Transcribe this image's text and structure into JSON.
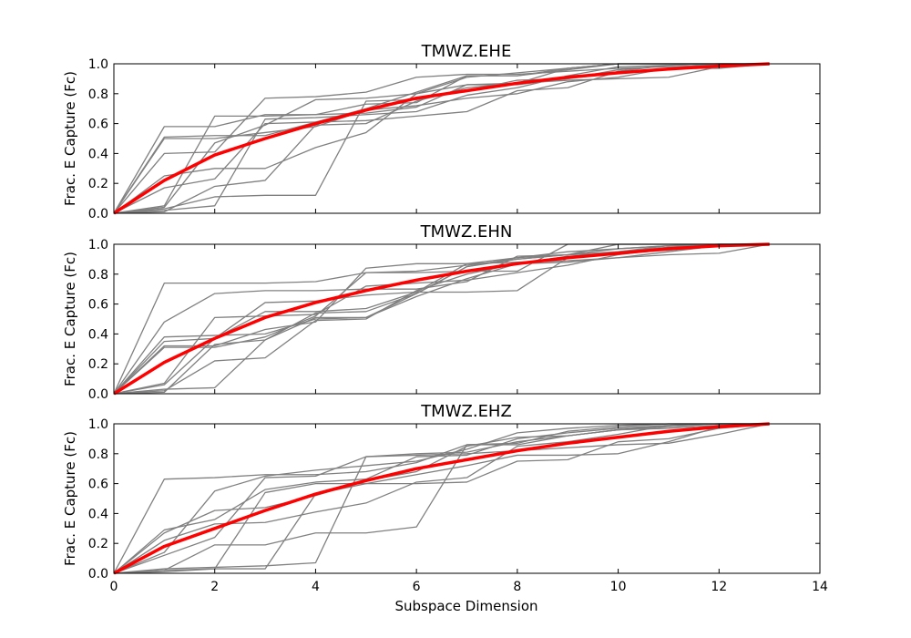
{
  "xlabel": "Subspace Dimension",
  "ylabel": "Frac. E Capture (Fc)",
  "colors": {
    "individual": "#808080",
    "mean": "#ff0000",
    "axes": "#000000",
    "background": "#ffffff"
  },
  "chart_data": [
    {
      "type": "line",
      "title": "TMWZ.EHE",
      "xlabel": "",
      "ylabel": "Frac. E Capture (Fc)",
      "xlim": [
        0,
        14
      ],
      "ylim": [
        0,
        1.0
      ],
      "xticks": [
        "0",
        "2",
        "4",
        "6",
        "8",
        "10",
        "12",
        "14"
      ],
      "yticks": [
        "0.0",
        "0.2",
        "0.4",
        "0.6",
        "0.8",
        "1.0"
      ],
      "x": [
        0,
        1,
        2,
        3,
        4,
        5,
        6,
        7,
        8,
        9,
        10,
        11,
        12,
        13
      ],
      "mean": [
        0.0,
        0.22,
        0.39,
        0.5,
        0.6,
        0.69,
        0.77,
        0.82,
        0.87,
        0.91,
        0.94,
        0.965,
        0.985,
        1.0
      ],
      "series": [
        {
          "values": [
            0.0,
            0.58,
            0.58,
            0.66,
            0.66,
            0.73,
            0.74,
            0.92,
            0.92,
            0.97,
            1.0,
            1.0,
            1.0,
            1.0
          ]
        },
        {
          "values": [
            0.0,
            0.51,
            0.52,
            0.52,
            0.61,
            0.7,
            0.81,
            0.92,
            0.92,
            0.96,
            1.0,
            1.0,
            1.0,
            1.0
          ]
        },
        {
          "values": [
            0.0,
            0.5,
            0.5,
            0.54,
            0.58,
            0.69,
            0.72,
            0.77,
            0.8,
            0.88,
            0.91,
            0.97,
            1.0,
            1.0
          ]
        },
        {
          "values": [
            0.0,
            0.4,
            0.41,
            0.77,
            0.78,
            0.81,
            0.91,
            0.93,
            0.93,
            0.95,
            0.97,
            0.98,
            0.99,
            1.0
          ]
        },
        {
          "values": [
            0.0,
            0.25,
            0.3,
            0.3,
            0.44,
            0.54,
            0.8,
            0.86,
            0.87,
            0.89,
            0.9,
            0.91,
            0.98,
            1.0
          ]
        },
        {
          "values": [
            0.0,
            0.17,
            0.23,
            0.6,
            0.61,
            0.62,
            0.65,
            0.68,
            0.82,
            0.84,
            0.95,
            0.99,
            1.0,
            1.0
          ]
        },
        {
          "values": [
            0.0,
            0.05,
            0.65,
            0.65,
            0.66,
            0.67,
            0.71,
            0.86,
            0.86,
            0.9,
            0.94,
            0.97,
            0.97,
            1.0
          ]
        },
        {
          "values": [
            0.0,
            0.04,
            0.47,
            0.59,
            0.76,
            0.77,
            0.8,
            0.91,
            0.94,
            0.97,
            1.0,
            1.0,
            1.0,
            1.0
          ]
        },
        {
          "values": [
            0.0,
            0.03,
            0.11,
            0.12,
            0.12,
            0.75,
            0.76,
            0.82,
            0.89,
            0.9,
            0.96,
            0.99,
            1.0,
            1.0
          ]
        },
        {
          "values": [
            0.0,
            0.02,
            0.05,
            0.63,
            0.64,
            0.66,
            0.68,
            0.79,
            0.84,
            0.92,
            0.98,
            0.99,
            1.0,
            1.0
          ]
        },
        {
          "values": [
            0.0,
            0.01,
            0.18,
            0.22,
            0.59,
            0.6,
            0.75,
            0.84,
            0.87,
            0.97,
            1.0,
            1.0,
            1.0,
            1.0
          ]
        }
      ]
    },
    {
      "type": "line",
      "title": "TMWZ.EHN",
      "xlabel": "",
      "ylabel": "Frac. E Capture (Fc)",
      "xlim": [
        0,
        14
      ],
      "ylim": [
        0,
        1.0
      ],
      "xticks": [
        "0",
        "2",
        "4",
        "6",
        "8",
        "10",
        "12",
        "14"
      ],
      "yticks": [
        "0.0",
        "0.2",
        "0.4",
        "0.6",
        "0.8",
        "1.0"
      ],
      "x": [
        0,
        1,
        2,
        3,
        4,
        5,
        6,
        7,
        8,
        9,
        10,
        11,
        12,
        13
      ],
      "mean": [
        0.0,
        0.21,
        0.37,
        0.51,
        0.61,
        0.69,
        0.76,
        0.82,
        0.87,
        0.91,
        0.94,
        0.97,
        0.99,
        1.0
      ],
      "series": [
        {
          "values": [
            0.0,
            0.74,
            0.74,
            0.74,
            0.75,
            0.81,
            0.81,
            0.82,
            0.82,
            1.0,
            1.0,
            1.0,
            1.0,
            1.0
          ]
        },
        {
          "values": [
            0.0,
            0.48,
            0.67,
            0.69,
            0.69,
            0.7,
            0.7,
            0.75,
            0.92,
            0.93,
            0.94,
            0.98,
            1.0,
            1.0
          ]
        },
        {
          "values": [
            0.0,
            0.38,
            0.39,
            0.4,
            0.5,
            0.51,
            0.67,
            0.85,
            0.9,
            0.93,
            0.97,
            0.99,
            1.0,
            1.0
          ]
        },
        {
          "values": [
            0.0,
            0.35,
            0.37,
            0.55,
            0.55,
            0.57,
            0.68,
            0.87,
            0.91,
            0.95,
            0.97,
            0.99,
            1.0,
            1.0
          ]
        },
        {
          "values": [
            0.0,
            0.32,
            0.32,
            0.43,
            0.48,
            0.84,
            0.87,
            0.87,
            0.88,
            0.89,
            0.91,
            0.93,
            0.94,
            1.0
          ]
        },
        {
          "values": [
            0.0,
            0.31,
            0.31,
            0.38,
            0.52,
            0.81,
            0.82,
            0.86,
            0.9,
            0.93,
            1.0,
            1.0,
            1.0,
            1.0
          ]
        },
        {
          "values": [
            0.0,
            0.07,
            0.51,
            0.52,
            0.53,
            0.72,
            0.74,
            0.76,
            0.81,
            0.86,
            0.93,
            0.97,
            1.0,
            1.0
          ]
        },
        {
          "values": [
            0.0,
            0.06,
            0.37,
            0.61,
            0.62,
            0.66,
            0.68,
            0.68,
            0.69,
            0.91,
            0.95,
            0.98,
            1.0,
            1.0
          ]
        },
        {
          "values": [
            0.0,
            0.03,
            0.04,
            0.36,
            0.51,
            0.51,
            0.65,
            0.77,
            0.87,
            0.88,
            0.91,
            0.95,
            0.99,
            1.0
          ]
        },
        {
          "values": [
            0.0,
            0.02,
            0.22,
            0.24,
            0.49,
            0.5,
            0.69,
            0.8,
            0.87,
            0.92,
            0.94,
            0.96,
            0.99,
            1.0
          ]
        },
        {
          "values": [
            0.0,
            0.01,
            0.33,
            0.36,
            0.54,
            0.55,
            0.67,
            0.85,
            0.91,
            0.93,
            0.95,
            0.99,
            1.0,
            1.0
          ]
        }
      ]
    },
    {
      "type": "line",
      "title": "TMWZ.EHZ",
      "xlabel": "Subspace Dimension",
      "ylabel": "Frac. E Capture (Fc)",
      "xlim": [
        0,
        14
      ],
      "ylim": [
        0,
        1.0
      ],
      "xticks": [
        "0",
        "2",
        "4",
        "6",
        "8",
        "10",
        "12",
        "14"
      ],
      "yticks": [
        "0.0",
        "0.2",
        "0.4",
        "0.6",
        "0.8",
        "1.0"
      ],
      "x": [
        0,
        1,
        2,
        3,
        4,
        5,
        6,
        7,
        8,
        9,
        10,
        11,
        12,
        13
      ],
      "mean": [
        0.0,
        0.18,
        0.3,
        0.42,
        0.53,
        0.62,
        0.7,
        0.76,
        0.82,
        0.87,
        0.91,
        0.95,
        0.98,
        1.0
      ],
      "series": [
        {
          "values": [
            0.0,
            0.63,
            0.64,
            0.66,
            0.66,
            0.68,
            0.74,
            0.86,
            0.87,
            0.95,
            0.98,
            1.0,
            1.0,
            1.0
          ]
        },
        {
          "values": [
            0.0,
            0.29,
            0.36,
            0.56,
            0.61,
            0.63,
            0.78,
            0.79,
            0.9,
            0.94,
            0.97,
            0.99,
            1.0,
            1.0
          ]
        },
        {
          "values": [
            0.0,
            0.27,
            0.42,
            0.44,
            0.52,
            0.62,
            0.68,
            0.85,
            0.91,
            0.92,
            0.96,
            0.98,
            1.0,
            1.0
          ]
        },
        {
          "values": [
            0.0,
            0.22,
            0.33,
            0.34,
            0.41,
            0.47,
            0.61,
            0.64,
            0.85,
            0.88,
            0.93,
            0.99,
            1.0,
            1.0
          ]
        },
        {
          "values": [
            0.0,
            0.14,
            0.55,
            0.65,
            0.69,
            0.72,
            0.75,
            0.83,
            0.94,
            0.97,
            0.99,
            1.0,
            1.0,
            1.0
          ]
        },
        {
          "values": [
            0.0,
            0.12,
            0.24,
            0.64,
            0.65,
            0.78,
            0.79,
            0.8,
            0.82,
            0.84,
            0.86,
            0.87,
            0.93,
            1.0
          ]
        },
        {
          "values": [
            0.0,
            0.03,
            0.04,
            0.05,
            0.07,
            0.78,
            0.8,
            0.81,
            0.88,
            0.92,
            0.96,
            0.97,
            0.99,
            1.0
          ]
        },
        {
          "values": [
            0.0,
            0.02,
            0.19,
            0.19,
            0.27,
            0.27,
            0.31,
            0.86,
            0.86,
            0.92,
            0.96,
            0.99,
            1.0,
            1.0
          ]
        },
        {
          "values": [
            0.0,
            0.02,
            0.03,
            0.54,
            0.6,
            0.6,
            0.6,
            0.61,
            0.75,
            0.76,
            0.88,
            0.9,
            0.97,
            1.0
          ]
        },
        {
          "values": [
            0.0,
            0.01,
            0.03,
            0.03,
            0.53,
            0.6,
            0.66,
            0.72,
            0.79,
            0.79,
            0.8,
            0.88,
            0.98,
            1.0
          ]
        }
      ]
    }
  ]
}
